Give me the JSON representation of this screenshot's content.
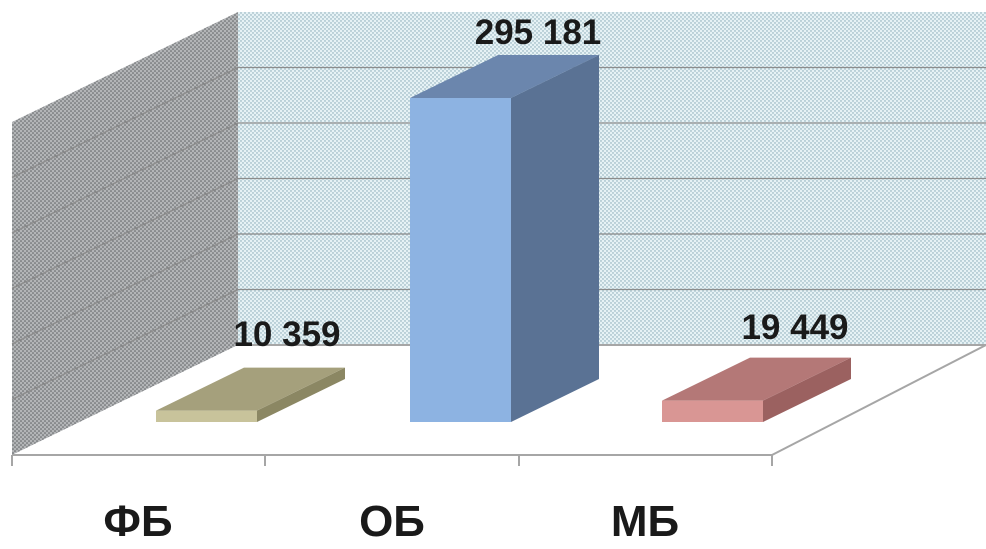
{
  "chart_data": {
    "type": "bar",
    "subtype": "3d-column",
    "categories": [
      "ФБ",
      "ОБ",
      "МБ"
    ],
    "values": [
      10359,
      295181,
      19449
    ],
    "data_labels": [
      "10 359",
      "295 181",
      "19 449"
    ],
    "ylim": [
      0,
      300000
    ],
    "grid": true,
    "legend": "none",
    "colors": {
      "bars": [
        "#c8c39b",
        "#8db3e2",
        "#d99694"
      ],
      "bar_sides": [
        "#8b8763",
        "#5a7294",
        "#9b6160"
      ],
      "bar_tops": [
        "#a5a07c",
        "#6b86ad",
        "#b47877"
      ],
      "back_wall": "#e3f0f3",
      "side_wall": "#a9abad"
    }
  }
}
